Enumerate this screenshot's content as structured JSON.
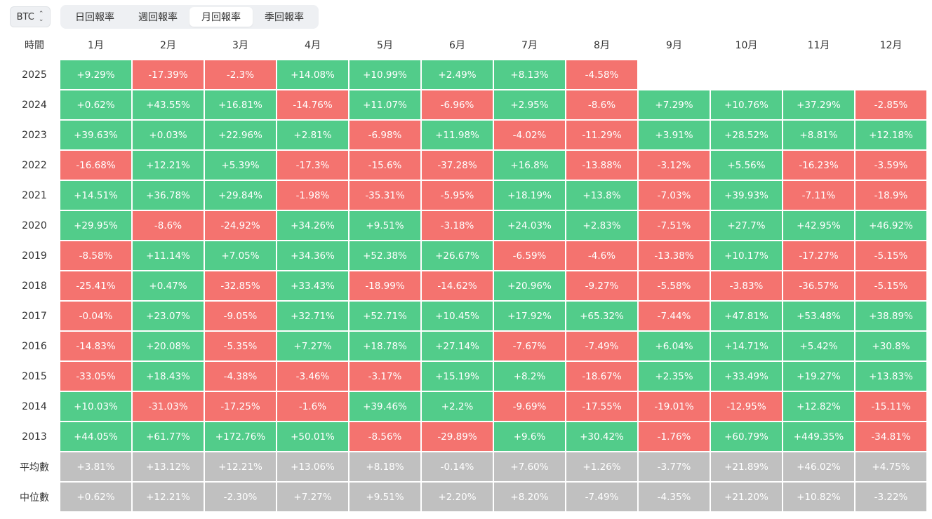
{
  "coin_select": {
    "value": "BTC",
    "icon": "chevron-up-down-icon"
  },
  "tabs": [
    {
      "label": "日回報率",
      "active": false
    },
    {
      "label": "週回報率",
      "active": false
    },
    {
      "label": "月回報率",
      "active": true
    },
    {
      "label": "季回報率",
      "active": false
    }
  ],
  "colors": {
    "positive": "#52cc8a",
    "negative": "#f4736f",
    "summary": "#c0c0c0"
  },
  "table": {
    "corner_header": "時間",
    "months": [
      "1月",
      "2月",
      "3月",
      "4月",
      "5月",
      "6月",
      "7月",
      "8月",
      "9月",
      "10月",
      "11月",
      "12月"
    ],
    "rows": [
      {
        "label": "2025",
        "type": "year",
        "values": [
          "+9.29%",
          "-17.39%",
          "-2.3%",
          "+14.08%",
          "+10.99%",
          "+2.49%",
          "+8.13%",
          "-4.58%",
          "",
          "",
          "",
          ""
        ]
      },
      {
        "label": "2024",
        "type": "year",
        "values": [
          "+0.62%",
          "+43.55%",
          "+16.81%",
          "-14.76%",
          "+11.07%",
          "-6.96%",
          "+2.95%",
          "-8.6%",
          "+7.29%",
          "+10.76%",
          "+37.29%",
          "-2.85%"
        ]
      },
      {
        "label": "2023",
        "type": "year",
        "values": [
          "+39.63%",
          "+0.03%",
          "+22.96%",
          "+2.81%",
          "-6.98%",
          "+11.98%",
          "-4.02%",
          "-11.29%",
          "+3.91%",
          "+28.52%",
          "+8.81%",
          "+12.18%"
        ]
      },
      {
        "label": "2022",
        "type": "year",
        "values": [
          "-16.68%",
          "+12.21%",
          "+5.39%",
          "-17.3%",
          "-15.6%",
          "-37.28%",
          "+16.8%",
          "-13.88%",
          "-3.12%",
          "+5.56%",
          "-16.23%",
          "-3.59%"
        ]
      },
      {
        "label": "2021",
        "type": "year",
        "values": [
          "+14.51%",
          "+36.78%",
          "+29.84%",
          "-1.98%",
          "-35.31%",
          "-5.95%",
          "+18.19%",
          "+13.8%",
          "-7.03%",
          "+39.93%",
          "-7.11%",
          "-18.9%"
        ]
      },
      {
        "label": "2020",
        "type": "year",
        "values": [
          "+29.95%",
          "-8.6%",
          "-24.92%",
          "+34.26%",
          "+9.51%",
          "-3.18%",
          "+24.03%",
          "+2.83%",
          "-7.51%",
          "+27.7%",
          "+42.95%",
          "+46.92%"
        ]
      },
      {
        "label": "2019",
        "type": "year",
        "values": [
          "-8.58%",
          "+11.14%",
          "+7.05%",
          "+34.36%",
          "+52.38%",
          "+26.67%",
          "-6.59%",
          "-4.6%",
          "-13.38%",
          "+10.17%",
          "-17.27%",
          "-5.15%"
        ]
      },
      {
        "label": "2018",
        "type": "year",
        "values": [
          "-25.41%",
          "+0.47%",
          "-32.85%",
          "+33.43%",
          "-18.99%",
          "-14.62%",
          "+20.96%",
          "-9.27%",
          "-5.58%",
          "-3.83%",
          "-36.57%",
          "-5.15%"
        ]
      },
      {
        "label": "2017",
        "type": "year",
        "values": [
          "-0.04%",
          "+23.07%",
          "-9.05%",
          "+32.71%",
          "+52.71%",
          "+10.45%",
          "+17.92%",
          "+65.32%",
          "-7.44%",
          "+47.81%",
          "+53.48%",
          "+38.89%"
        ]
      },
      {
        "label": "2016",
        "type": "year",
        "values": [
          "-14.83%",
          "+20.08%",
          "-5.35%",
          "+7.27%",
          "+18.78%",
          "+27.14%",
          "-7.67%",
          "-7.49%",
          "+6.04%",
          "+14.71%",
          "+5.42%",
          "+30.8%"
        ]
      },
      {
        "label": "2015",
        "type": "year",
        "values": [
          "-33.05%",
          "+18.43%",
          "-4.38%",
          "-3.46%",
          "-3.17%",
          "+15.19%",
          "+8.2%",
          "-18.67%",
          "+2.35%",
          "+33.49%",
          "+19.27%",
          "+13.83%"
        ]
      },
      {
        "label": "2014",
        "type": "year",
        "values": [
          "+10.03%",
          "-31.03%",
          "-17.25%",
          "-1.6%",
          "+39.46%",
          "+2.2%",
          "-9.69%",
          "-17.55%",
          "-19.01%",
          "-12.95%",
          "+12.82%",
          "-15.11%"
        ]
      },
      {
        "label": "2013",
        "type": "year",
        "values": [
          "+44.05%",
          "+61.77%",
          "+172.76%",
          "+50.01%",
          "-8.56%",
          "-29.89%",
          "+9.6%",
          "+30.42%",
          "-1.76%",
          "+60.79%",
          "+449.35%",
          "-34.81%"
        ]
      },
      {
        "label": "平均數",
        "type": "summary",
        "values": [
          "+3.81%",
          "+13.12%",
          "+12.21%",
          "+13.06%",
          "+8.18%",
          "-0.14%",
          "+7.60%",
          "+1.26%",
          "-3.77%",
          "+21.89%",
          "+46.02%",
          "+4.75%"
        ]
      },
      {
        "label": "中位數",
        "type": "summary",
        "values": [
          "+0.62%",
          "+12.21%",
          "-2.30%",
          "+7.27%",
          "+9.51%",
          "+2.20%",
          "+8.20%",
          "-7.49%",
          "-4.35%",
          "+21.20%",
          "+10.82%",
          "-3.22%"
        ]
      }
    ]
  }
}
